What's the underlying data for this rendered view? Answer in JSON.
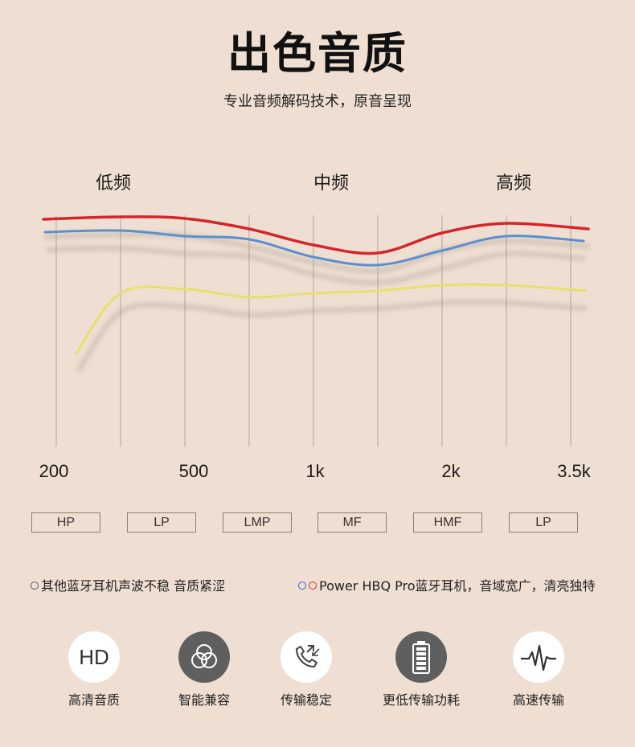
{
  "header": {
    "title": "出色音质",
    "subtitle": "专业音频解码技术，原音呈现"
  },
  "bands": {
    "low": "低频",
    "mid": "中频",
    "high": "高频"
  },
  "chart_data": {
    "type": "line",
    "x": [
      "200",
      "",
      "500",
      "",
      "1k",
      "",
      "2k",
      "",
      "3.5k"
    ],
    "tick_labels": [
      "200",
      "500",
      "1k",
      "2k",
      "3.5k"
    ],
    "grid": true,
    "series": [
      {
        "name": "Power HBQ Pro",
        "color": "#d4262b",
        "values": [
          273,
          270,
          272,
          285,
          305,
          315,
          290,
          278,
          285
        ]
      },
      {
        "name": "",
        "color": "#5b8fcf",
        "values": [
          289,
          287,
          294,
          298,
          320,
          330,
          312,
          294,
          300
        ]
      },
      {
        "name": "",
        "color": "#e9df6c",
        "values": [
          440,
          365,
          360,
          370,
          365,
          362,
          355,
          355,
          362
        ]
      }
    ]
  },
  "filters": [
    "HP",
    "LP",
    "LMP",
    "MF",
    "HMF",
    "LP"
  ],
  "legend": {
    "others": "其他蓝牙耳机声波不稳 音质紧涩",
    "ours": "Power HBQ Pro蓝牙耳机，音域宽广，清亮独特"
  },
  "features": [
    {
      "icon": "hd-icon",
      "icon_text": "HD",
      "label": "高清音质"
    },
    {
      "icon": "circles-icon",
      "label": "智能兼容"
    },
    {
      "icon": "phone-icon",
      "label": "传输稳定"
    },
    {
      "icon": "battery-icon",
      "label": "更低传输功耗"
    },
    {
      "icon": "pulse-icon",
      "label": "高速传输"
    }
  ]
}
